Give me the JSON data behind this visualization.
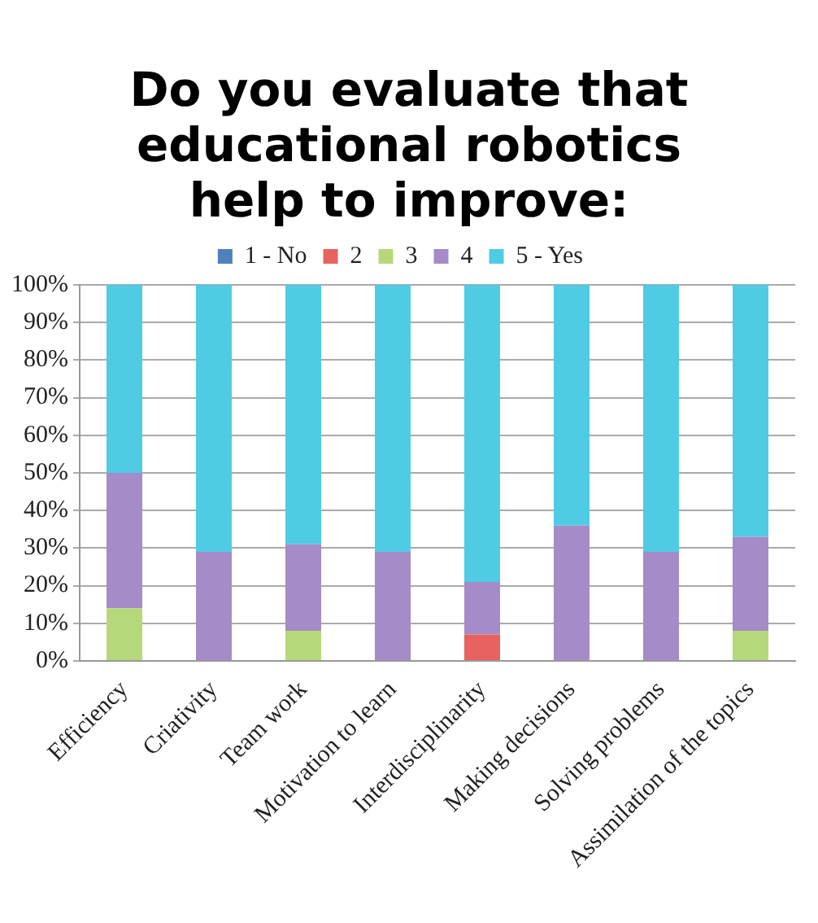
{
  "chart_data": {
    "type": "bar",
    "title": "Do you evaluate that educational robotics help to improve:",
    "stacked": true,
    "categories": [
      "Efficiency",
      "Criativity",
      "Team work",
      "Motivation to learn",
      "Interdisciplinarity",
      "Making decisions",
      "Solving problems",
      "Assimilation of the topics"
    ],
    "series": [
      {
        "name": "1 - No",
        "color": "#4f81bd",
        "values": [
          0,
          0,
          0,
          0,
          0,
          0,
          0,
          0
        ]
      },
      {
        "name": "2",
        "color": "#e8625f",
        "values": [
          0,
          0,
          0,
          0,
          7,
          0,
          0,
          0
        ]
      },
      {
        "name": "3",
        "color": "#b5d97a",
        "values": [
          14,
          0,
          8,
          0,
          0,
          0,
          0,
          8
        ]
      },
      {
        "name": "4",
        "color": "#a58bc7",
        "values": [
          36,
          29,
          23,
          29,
          14,
          36,
          29,
          25
        ]
      },
      {
        "name": "5 - Yes",
        "color": "#4fcbe4",
        "values": [
          50,
          71,
          69,
          71,
          79,
          64,
          71,
          67
        ]
      }
    ],
    "ylim": [
      0,
      100
    ],
    "yticks": [
      {
        "value": 0,
        "label": "0%"
      },
      {
        "value": 10,
        "label": "10%"
      },
      {
        "value": 20,
        "label": "20%"
      },
      {
        "value": 30,
        "label": "30%"
      },
      {
        "value": 40,
        "label": "40%"
      },
      {
        "value": 50,
        "label": "50%"
      },
      {
        "value": 60,
        "label": "60%"
      },
      {
        "value": 70,
        "label": "70%"
      },
      {
        "value": 80,
        "label": "80%"
      },
      {
        "value": 90,
        "label": "90%"
      },
      {
        "value": 100,
        "label": "100%"
      }
    ],
    "grid": "y",
    "legend": "top"
  }
}
